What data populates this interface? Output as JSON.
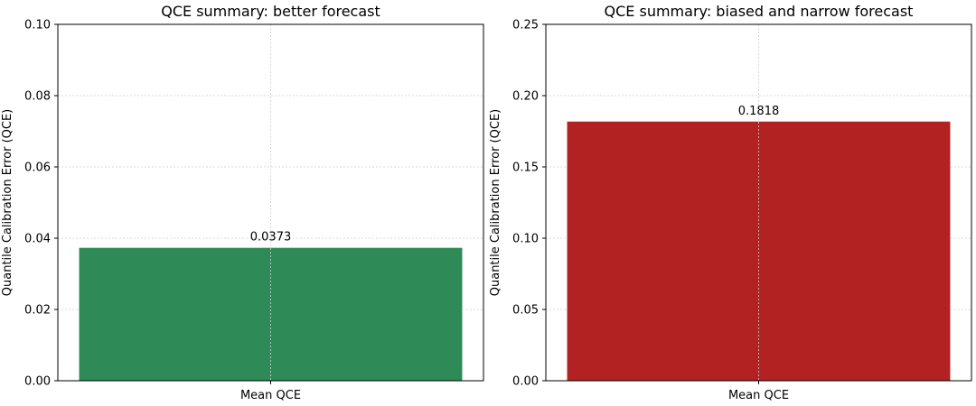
{
  "chart_data": [
    {
      "type": "bar",
      "title": "QCE summary: better forecast",
      "xlabel": "",
      "ylabel": "Quantile Calibration Error (QCE)",
      "categories": [
        "Mean QCE"
      ],
      "values": [
        0.0373
      ],
      "value_labels": [
        "0.0373"
      ],
      "ylim": [
        0,
        0.1
      ],
      "yticks": [
        0,
        0.02,
        0.04,
        0.06,
        0.08,
        0.1
      ],
      "ytick_labels": [
        "0.00",
        "0.02",
        "0.04",
        "0.06",
        "0.08",
        "0.10"
      ],
      "bar_color": "#2e8b57",
      "grid": true
    },
    {
      "type": "bar",
      "title": "QCE summary: biased and narrow forecast",
      "xlabel": "",
      "ylabel": "Quantile Calibration Error (QCE)",
      "categories": [
        "Mean QCE"
      ],
      "values": [
        0.1818
      ],
      "value_labels": [
        "0.1818"
      ],
      "ylim": [
        0,
        0.25
      ],
      "yticks": [
        0,
        0.05,
        0.1,
        0.15,
        0.2,
        0.25
      ],
      "ytick_labels": [
        "0.00",
        "0.05",
        "0.10",
        "0.15",
        "0.20",
        "0.25"
      ],
      "bar_color": "#b22222",
      "grid": true
    }
  ]
}
